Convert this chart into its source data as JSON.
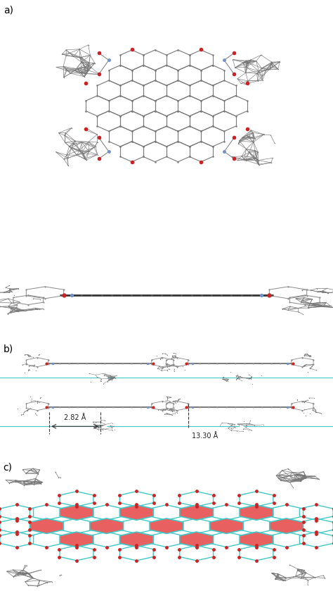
{
  "bg_color": "#ffffff",
  "label_a": "a)",
  "label_b": "b)",
  "label_c": "c)",
  "label_fontsize": 10,
  "dist1": "2.82 Å",
  "dist2": "13.30 Å",
  "hex_fill_color": "#e86060",
  "hex_edge_color": "#40c8c8",
  "hex_edge_color2": "#8060c0",
  "red_dot_color": "#cc2222",
  "blue_n_color": "#7090cc",
  "carbon_color": "#787878",
  "teal_color": "#40c8c8",
  "dark_color": "#444444"
}
